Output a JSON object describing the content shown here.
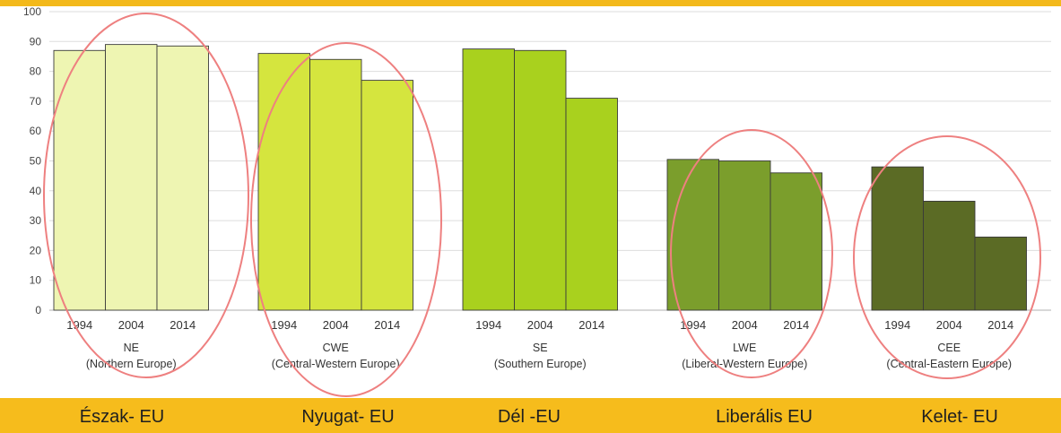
{
  "chart_data": {
    "type": "bar",
    "ylim": [
      0,
      100
    ],
    "yticks": [
      0,
      10,
      20,
      30,
      40,
      50,
      60,
      70,
      80,
      90,
      100
    ],
    "grid": true,
    "years": [
      "1994",
      "2004",
      "2014"
    ],
    "groups": [
      {
        "code": "NE",
        "name": "(Northern Europe)",
        "values": [
          87,
          89,
          88.5
        ],
        "color": "#eef5b2"
      },
      {
        "code": "CWE",
        "name": "(Central-Western Europe)",
        "values": [
          86,
          84,
          77
        ],
        "color": "#d5e53e"
      },
      {
        "code": "SE",
        "name": "(Southern Europe)",
        "values": [
          87.5,
          87,
          71
        ],
        "color": "#a9d11e"
      },
      {
        "code": "LWE",
        "name": "(Liberal-Western Europe)",
        "values": [
          50.5,
          50,
          46
        ],
        "color": "#7b9e2c"
      },
      {
        "code": "CEE",
        "name": "(Central-Eastern Europe)",
        "values": [
          48,
          36.5,
          24.5
        ],
        "color": "#5b6b25"
      }
    ]
  },
  "region_labels": [
    "Észak- EU",
    "Nyugat- EU",
    "Dél -EU",
    "Liberális EU",
    "Kelet- EU"
  ],
  "colors": {
    "top_band": "#f3b91b",
    "bottom_band": "#f6bc1c",
    "circle": "#ee8080"
  }
}
